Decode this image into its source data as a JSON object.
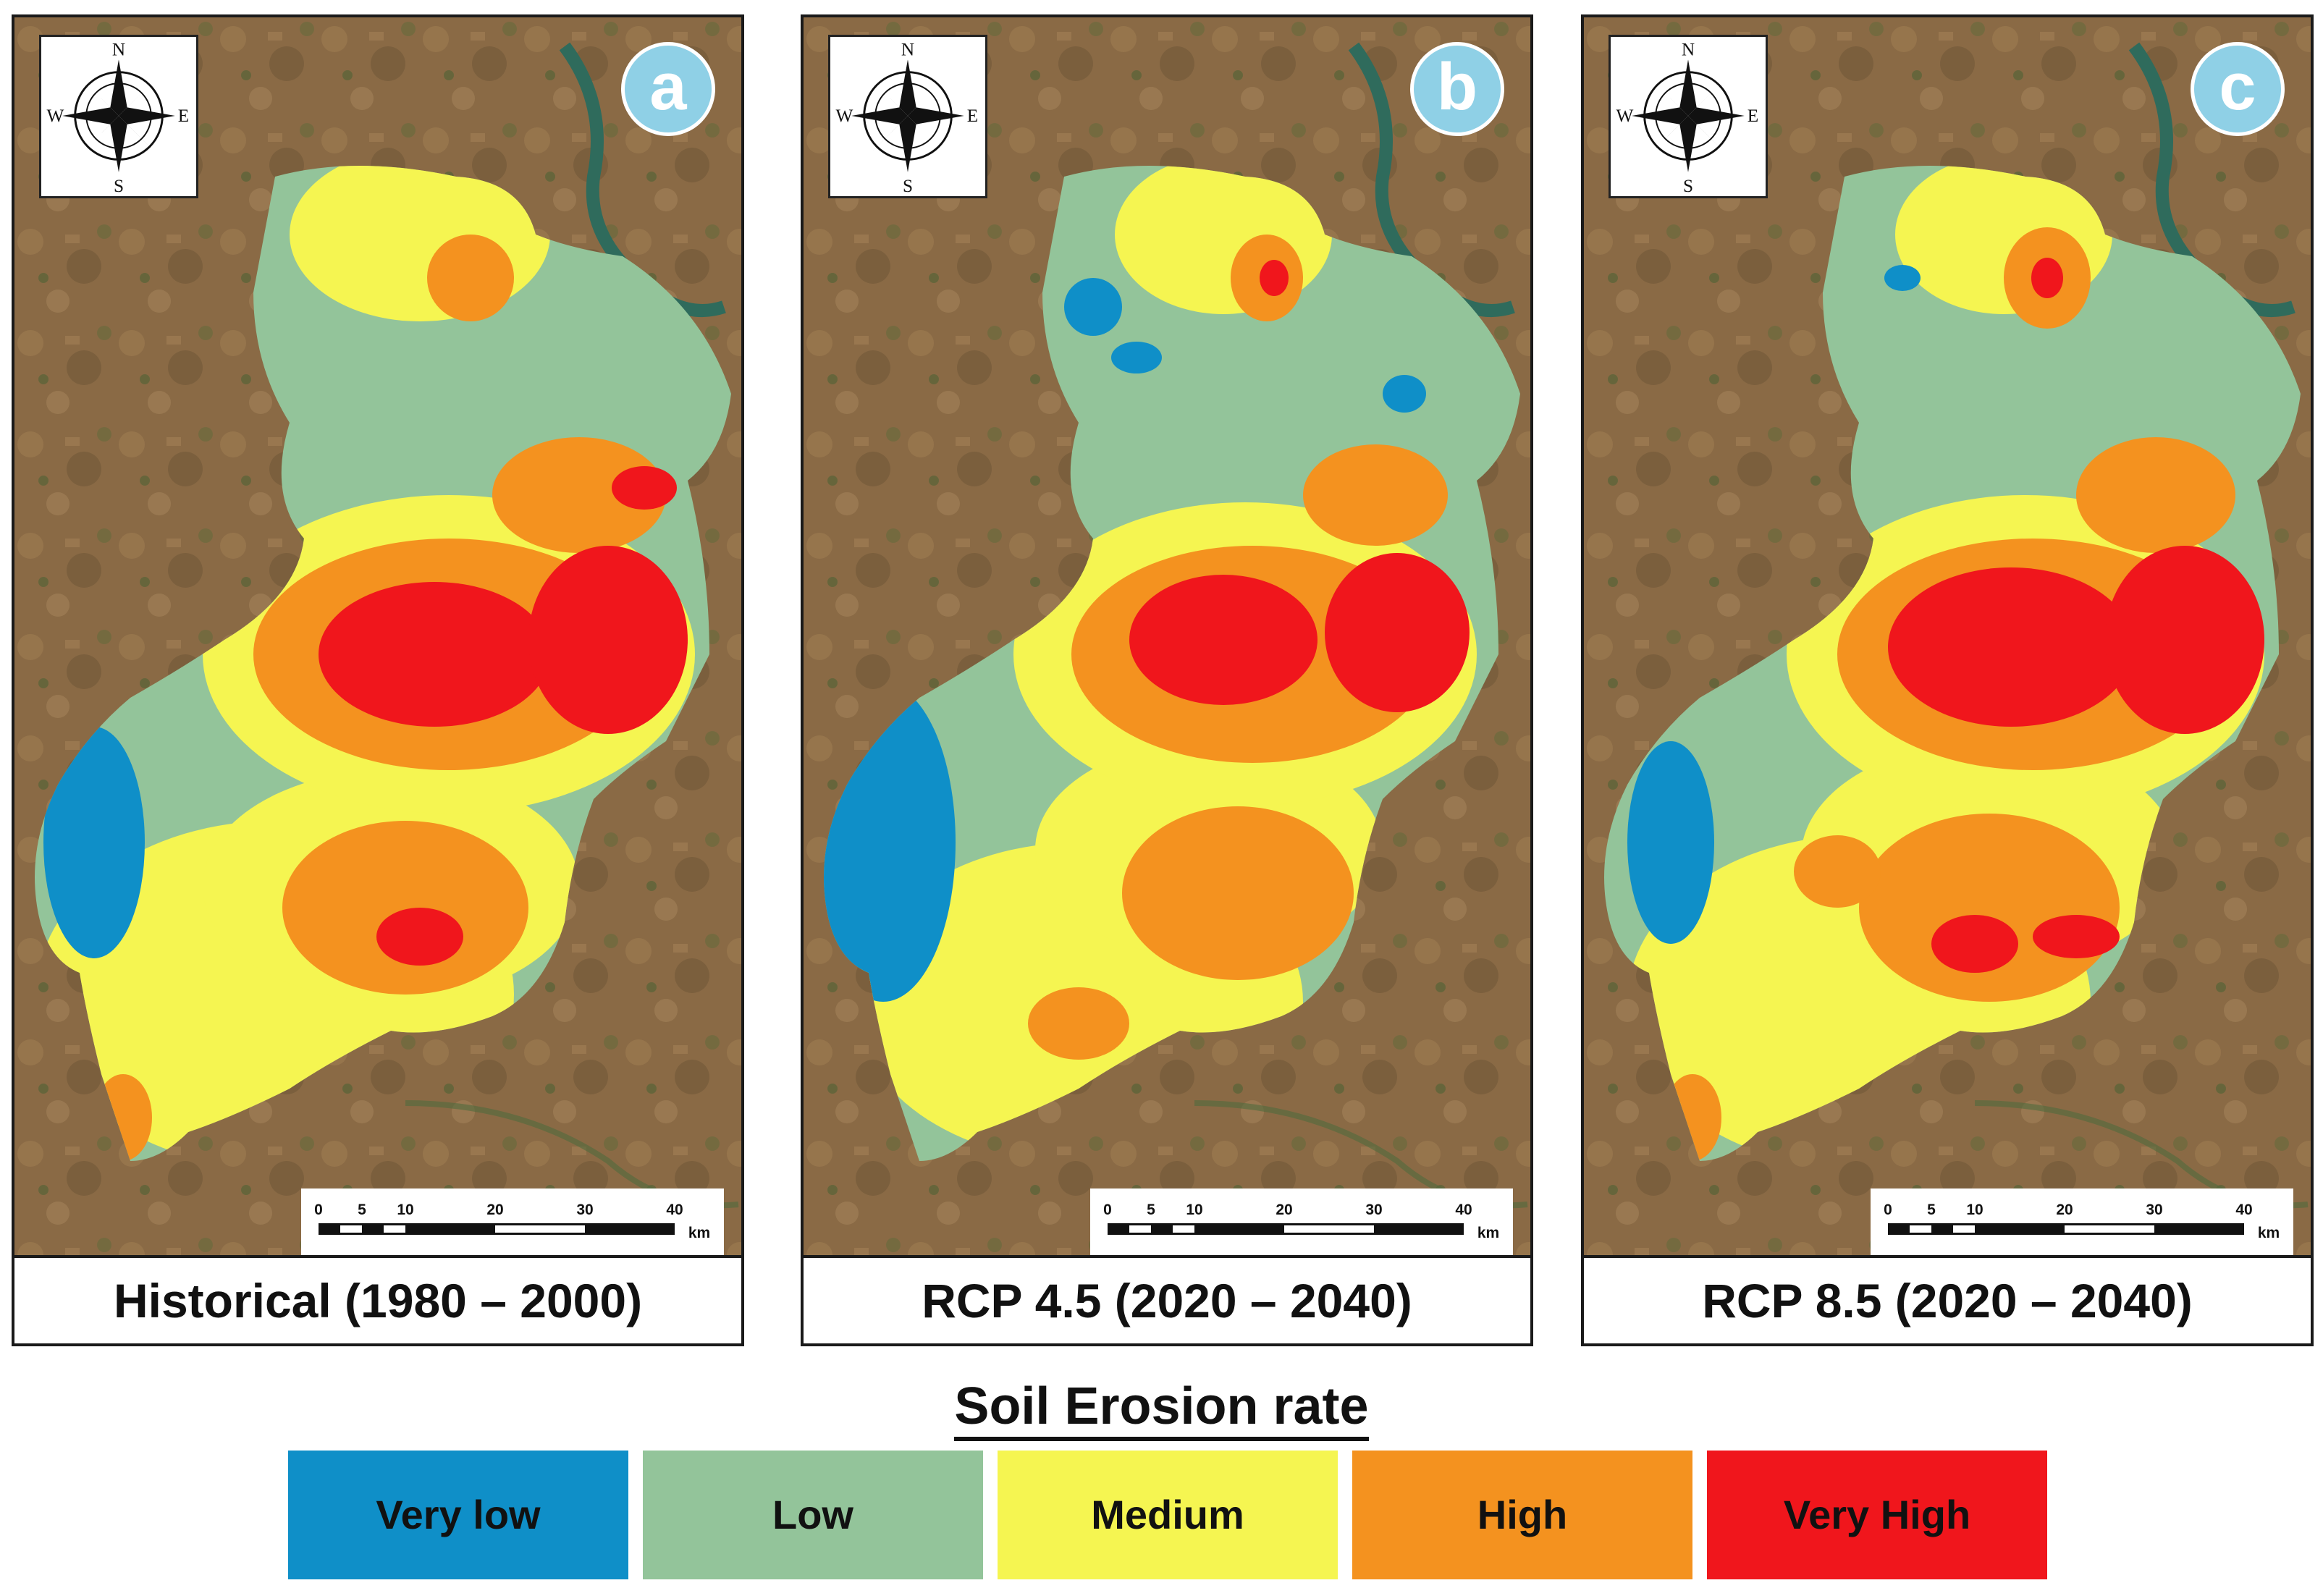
{
  "panels": [
    {
      "id": "a",
      "badge": "a",
      "label": "Historical (1980 – 2000)"
    },
    {
      "id": "b",
      "badge": "b",
      "label": "RCP 4.5 (2020 – 2040)"
    },
    {
      "id": "c",
      "badge": "c",
      "label": "RCP 8.5 (2020 – 2040)"
    }
  ],
  "compass": {
    "north": "N",
    "south": "S",
    "east": "E",
    "west": "W"
  },
  "scale_bar": {
    "ticks": [
      "0",
      "5",
      "10",
      "20",
      "30",
      "40"
    ],
    "unit": "km"
  },
  "legend": {
    "title": "Soil Erosion rate",
    "classes": [
      {
        "label": "Very low",
        "color": "#0f8fc8"
      },
      {
        "label": "Low",
        "color": "#93c49a"
      },
      {
        "label": "Medium",
        "color": "#f5f551"
      },
      {
        "label": "High",
        "color": "#f4921f"
      },
      {
        "label": "Very High",
        "color": "#f0161c"
      }
    ]
  },
  "colors": {
    "basemap": "#8a6a45",
    "badge": "#8fd0e6",
    "river": "#2f6b5c"
  }
}
